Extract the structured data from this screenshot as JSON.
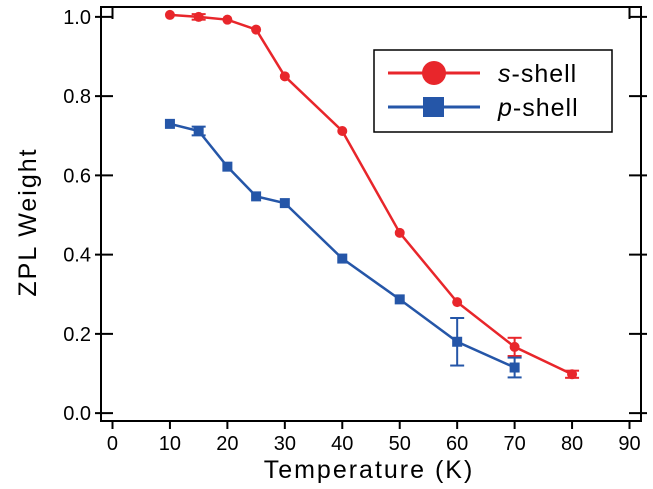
{
  "chart_data": {
    "type": "line",
    "xlabel": "Temperature (K)",
    "ylabel": "ZPL Weight",
    "xlim": [
      -2,
      92
    ],
    "ylim": [
      -0.02,
      1.025
    ],
    "x_ticks": [
      0,
      10,
      20,
      30,
      40,
      50,
      60,
      70,
      80,
      90
    ],
    "x_tick_labels": [
      "0",
      "10",
      "20",
      "30",
      "40",
      "50",
      "60",
      "70",
      "80",
      "90"
    ],
    "y_ticks": [
      0.0,
      0.2,
      0.4,
      0.6,
      0.8,
      1.0
    ],
    "y_tick_labels": [
      "0.0",
      "0.2",
      "0.4",
      "0.6",
      "0.8",
      "1.0"
    ],
    "grid": false,
    "legend_position": "top-right",
    "series": [
      {
        "name_italic": "s",
        "name_rest": "-shell",
        "color": "#e8262b",
        "marker": "circle",
        "x": [
          10,
          15,
          20,
          25,
          30,
          40,
          50,
          60,
          70,
          80
        ],
        "y": [
          1.005,
          1.0,
          0.993,
          0.968,
          0.85,
          0.712,
          0.455,
          0.28,
          0.167,
          0.098
        ],
        "err": [
          0,
          0.007,
          0,
          0,
          0,
          0,
          0,
          0,
          0.023,
          0.009
        ]
      },
      {
        "name_italic": "p",
        "name_rest": "-shell",
        "color": "#2556a8",
        "marker": "square",
        "x": [
          10,
          15,
          20,
          25,
          30,
          40,
          50,
          60,
          70
        ],
        "y": [
          0.73,
          0.712,
          0.622,
          0.547,
          0.53,
          0.39,
          0.287,
          0.18,
          0.115
        ],
        "err": [
          0,
          0.011,
          0,
          0,
          0,
          0,
          0,
          0.06,
          0.025
        ]
      }
    ]
  }
}
